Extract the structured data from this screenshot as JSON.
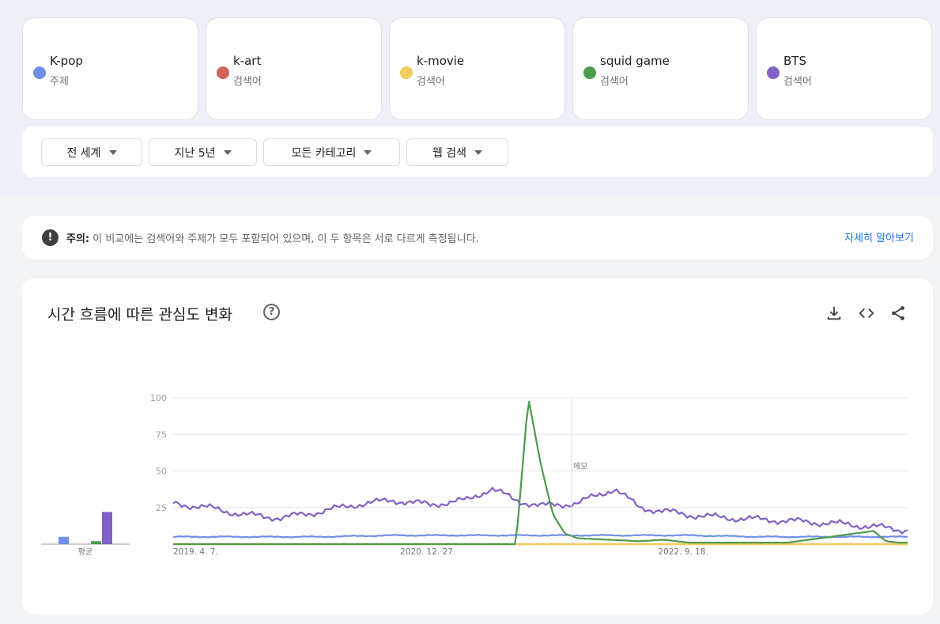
{
  "terms": [
    {
      "name": "K-pop",
      "type": "주제",
      "color": "#6f8fe8"
    },
    {
      "name": "k-art",
      "type": "검색어",
      "color": "#d2645c"
    },
    {
      "name": "k-movie",
      "type": "검색어",
      "color": "#f0cd5e"
    },
    {
      "name": "squid game",
      "type": "검색어",
      "color": "#4e9a4e"
    },
    {
      "name": "BTS",
      "type": "검색어",
      "color": "#8062c6"
    }
  ],
  "filters": {
    "region": "전 세계",
    "period": "지난 5년",
    "category": "모든 카테고리",
    "search_type": "웹 검색"
  },
  "notice": {
    "label": "주의:",
    "text": " 이 비교에는 검색어와 주제가 모두 포함되어 있으며, 이 두 항목은 서로 다르게 측정됩니다.",
    "link": "자세히 알아보기"
  },
  "chart": {
    "title": "시간 흐름에 따른 관심도 변화",
    "avg_label": "평균",
    "note_marker": "메모"
  },
  "chart_data": {
    "type": "line",
    "title": "시간 흐름에 따른 관심도 변화",
    "ylim": [
      0,
      100
    ],
    "yticks": [
      25,
      50,
      75,
      100
    ],
    "x_tick_labels": [
      "2019. 4. 7.",
      "2020. 12. 27.",
      "2022. 9. 18."
    ],
    "x_range": [
      "2019. 4. 7.",
      "2024. 3. 24."
    ],
    "grid": true,
    "series": [
      {
        "name": "K-pop",
        "color": "#6f8fe8",
        "average": 5,
        "x": [
          "2019-04",
          "2019-10",
          "2020-04",
          "2020-10",
          "2021-04",
          "2021-08",
          "2021-10",
          "2022-04",
          "2022-10",
          "2023-04",
          "2023-10",
          "2024-03"
        ],
        "values": [
          5,
          5,
          5,
          6,
          6,
          6,
          6,
          6,
          6,
          5,
          5,
          5
        ]
      },
      {
        "name": "k-art",
        "color": "#d2645c",
        "average": 0,
        "x": [
          "2019-04",
          "2024-03"
        ],
        "values": [
          0,
          0
        ]
      },
      {
        "name": "k-movie",
        "color": "#f0cd5e",
        "average": 0,
        "x": [
          "2019-04",
          "2024-03"
        ],
        "values": [
          0,
          0
        ]
      },
      {
        "name": "squid game",
        "color": "#4e9a4e",
        "average": 2,
        "x": [
          "2019-04",
          "2021-08",
          "2021-09",
          "2021-10",
          "2021-11",
          "2021-12",
          "2022-01",
          "2022-06",
          "2022-08",
          "2022-10",
          "2023-06",
          "2024-01",
          "2024-02",
          "2024-03"
        ],
        "values": [
          0,
          0,
          100,
          55,
          20,
          7,
          4,
          2,
          3,
          1,
          1,
          9,
          2,
          1
        ]
      },
      {
        "name": "BTS",
        "color": "#8062c6",
        "average": 22,
        "x": [
          "2019-04",
          "2019-07",
          "2019-10",
          "2020-01",
          "2020-04",
          "2020-07",
          "2020-10",
          "2021-01",
          "2021-04",
          "2021-06",
          "2021-08",
          "2021-10",
          "2022-01",
          "2022-04",
          "2022-06",
          "2022-10",
          "2023-01",
          "2023-06",
          "2023-10",
          "2024-01",
          "2024-03"
        ],
        "values": [
          28,
          25,
          20,
          18,
          22,
          27,
          30,
          27,
          30,
          38,
          30,
          26,
          28,
          38,
          25,
          20,
          18,
          16,
          14,
          12,
          10
        ]
      }
    ]
  }
}
